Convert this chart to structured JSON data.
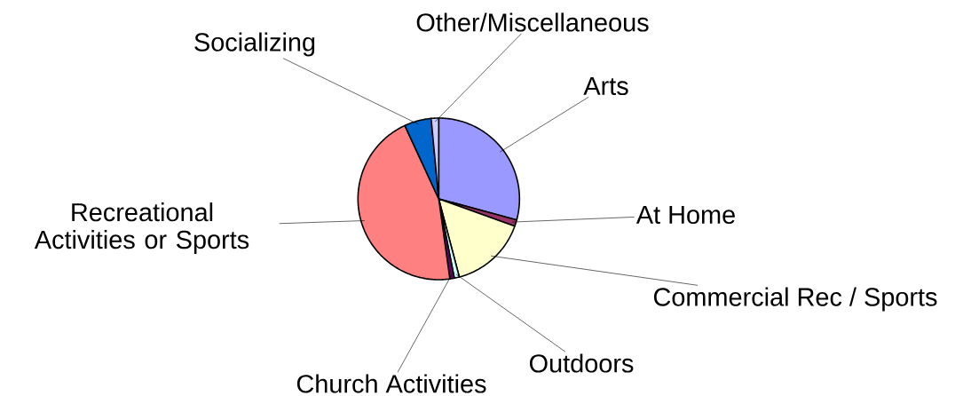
{
  "chart_data": {
    "type": "pie",
    "categories": [
      "Arts",
      "At Home",
      "Commercial Rec / Sports",
      "Outdoors",
      "Church Activities",
      "Recreational Activities or Sports",
      "Socializing",
      "Other/Miscellaneous"
    ],
    "values": [
      29.2,
      1.3,
      15.4,
      1.0,
      0.9,
      45.3,
      5.4,
      1.5
    ],
    "colors": [
      "#9999ff",
      "#993366",
      "#ffffcc",
      "#ccffff",
      "#660066",
      "#ff8080",
      "#0066cc",
      "#ccccff"
    ]
  }
}
